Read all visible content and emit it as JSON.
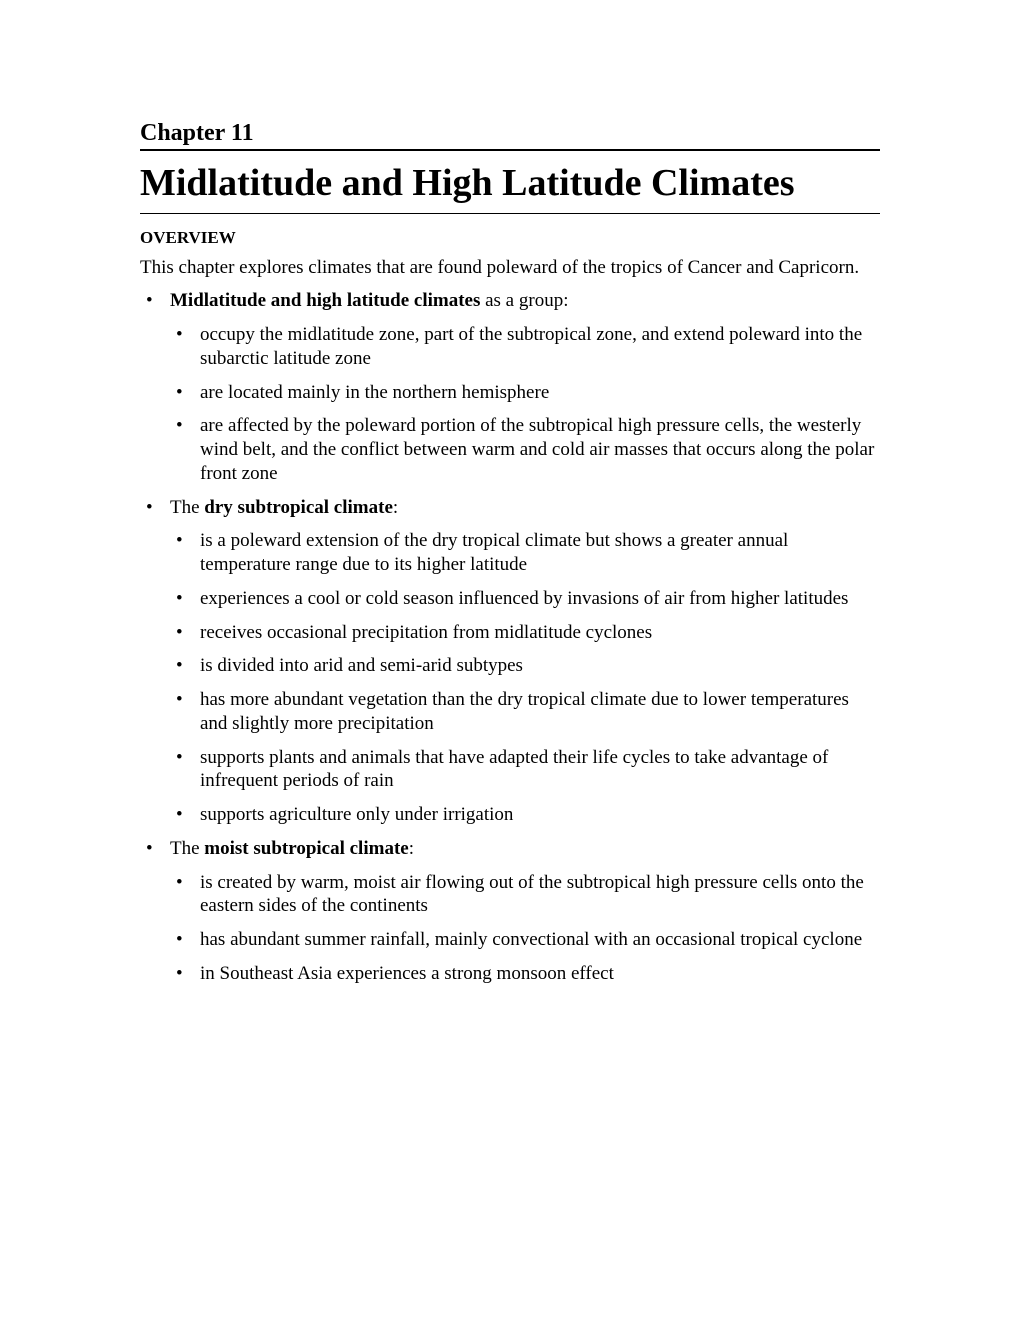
{
  "chapter_label": "Chapter 11",
  "chapter_title": "Midlatitude and High Latitude Climates",
  "section_heading": "OVERVIEW",
  "intro_text": "This chapter explores climates that are found poleward of the tropics of Cancer and Capricorn.",
  "bullets": {
    "group1": {
      "lead_bold": "Midlatitude and high latitude climates",
      "lead_rest": " as a group:",
      "items": [
        "occupy the midlatitude zone, part of the subtropical zone, and extend poleward into the subarctic latitude zone",
        "are located mainly in the northern hemisphere",
        "are affected by the poleward portion of the subtropical high pressure cells, the westerly wind belt, and the conflict between warm and cold air masses that occurs along the polar front zone"
      ]
    },
    "group2": {
      "lead_pre": "The ",
      "lead_bold": "dry subtropical climate",
      "lead_post": ":",
      "items": [
        "is a poleward extension of the dry tropical climate but shows a greater annual temperature range due to its higher latitude",
        "experiences a cool or cold season influenced by invasions of air from higher latitudes",
        "receives occasional precipitation from midlatitude cyclones",
        "is divided into arid and semi-arid subtypes",
        "has more abundant vegetation than the dry tropical climate due to lower temperatures and slightly more precipitation",
        "supports plants and animals that have adapted their life cycles to take advantage of infrequent periods of rain",
        "supports agriculture only under irrigation"
      ]
    },
    "group3": {
      "lead_pre": "The ",
      "lead_bold": "moist subtropical climate",
      "lead_post": ":",
      "items": [
        "is created  by warm, moist air flowing out of the subtropical high pressure cells onto the eastern sides of the continents",
        "has abundant summer rainfall, mainly convectional with an occasional tropical cyclone",
        "in Southeast Asia experiences a strong monsoon effect"
      ]
    }
  }
}
